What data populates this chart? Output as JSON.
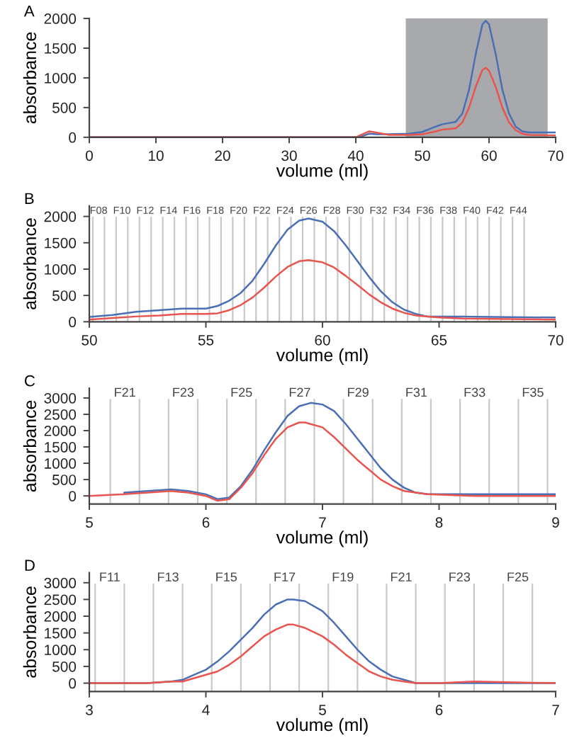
{
  "chart_data": [
    {
      "type": "line",
      "title": "A",
      "xlabel": "volume (ml)",
      "ylabel": "absorbance",
      "xlim": [
        0,
        70
      ],
      "xticks": [
        0,
        10,
        20,
        30,
        40,
        50,
        60,
        70
      ],
      "ylim": [
        0,
        2000
      ],
      "yticks": [
        0,
        500,
        1000,
        1500,
        2000
      ],
      "grid": false,
      "bands": [
        {
          "axis": "x",
          "from": 47.5,
          "to": 68.8,
          "color": "#a7a9ac"
        }
      ],
      "series": [
        {
          "color": "#4a6fb5",
          "x": [
            0,
            38,
            40,
            41,
            42,
            43,
            45,
            48,
            50,
            52,
            53,
            55,
            56,
            57,
            58,
            59,
            59.5,
            60,
            61,
            62,
            63,
            64,
            65,
            66,
            70
          ],
          "values": [
            0,
            0,
            0,
            20,
            60,
            50,
            50,
            60,
            90,
            180,
            220,
            260,
            400,
            800,
            1400,
            1900,
            1960,
            1900,
            1400,
            800,
            400,
            180,
            100,
            80,
            80
          ]
        },
        {
          "color": "#e8544e",
          "x": [
            0,
            38,
            40,
            41,
            42,
            43,
            45,
            48,
            50,
            52,
            53,
            55,
            56,
            57,
            58,
            59,
            59.5,
            60,
            61,
            62,
            63,
            64,
            65,
            66,
            70
          ],
          "values": [
            0,
            0,
            0,
            50,
            100,
            80,
            40,
            40,
            50,
            100,
            130,
            150,
            250,
            500,
            850,
            1130,
            1170,
            1120,
            850,
            500,
            250,
            120,
            60,
            40,
            30
          ]
        }
      ]
    },
    {
      "type": "line",
      "title": "B",
      "xlabel": "volume (ml)",
      "ylabel": "absorbance",
      "xlim": [
        50,
        70
      ],
      "xticks": [
        50,
        55,
        60,
        65,
        70
      ],
      "ylim": [
        0,
        2200
      ],
      "yticks": [
        0,
        500,
        1000,
        1500,
        2000
      ],
      "grid": false,
      "ref_lines": [
        {
          "axis": "x",
          "value": 50.15,
          "label": "F08"
        },
        {
          "axis": "x",
          "value": 50.65
        },
        {
          "axis": "x",
          "value": 51.15,
          "label": "F10"
        },
        {
          "axis": "x",
          "value": 51.65
        },
        {
          "axis": "x",
          "value": 52.15,
          "label": "F12"
        },
        {
          "axis": "x",
          "value": 52.65
        },
        {
          "axis": "x",
          "value": 53.15,
          "label": "F14"
        },
        {
          "axis": "x",
          "value": 53.65
        },
        {
          "axis": "x",
          "value": 54.15,
          "label": "F16"
        },
        {
          "axis": "x",
          "value": 54.65
        },
        {
          "axis": "x",
          "value": 55.15,
          "label": "F18"
        },
        {
          "axis": "x",
          "value": 55.65
        },
        {
          "axis": "x",
          "value": 56.15,
          "label": "F20"
        },
        {
          "axis": "x",
          "value": 56.65
        },
        {
          "axis": "x",
          "value": 57.15,
          "label": "F22"
        },
        {
          "axis": "x",
          "value": 57.65
        },
        {
          "axis": "x",
          "value": 58.15,
          "label": "F24"
        },
        {
          "axis": "x",
          "value": 58.65
        },
        {
          "axis": "x",
          "value": 59.15,
          "label": "F26"
        },
        {
          "axis": "x",
          "value": 59.65
        },
        {
          "axis": "x",
          "value": 60.15,
          "label": "F28"
        },
        {
          "axis": "x",
          "value": 60.65
        },
        {
          "axis": "x",
          "value": 61.15,
          "label": "F30"
        },
        {
          "axis": "x",
          "value": 61.65
        },
        {
          "axis": "x",
          "value": 62.15,
          "label": "F32"
        },
        {
          "axis": "x",
          "value": 62.65
        },
        {
          "axis": "x",
          "value": 63.15,
          "label": "F34"
        },
        {
          "axis": "x",
          "value": 63.65
        },
        {
          "axis": "x",
          "value": 64.15,
          "label": "F36"
        },
        {
          "axis": "x",
          "value": 64.65
        },
        {
          "axis": "x",
          "value": 65.15,
          "label": "F38"
        },
        {
          "axis": "x",
          "value": 65.65
        },
        {
          "axis": "x",
          "value": 66.15,
          "label": "F40"
        },
        {
          "axis": "x",
          "value": 66.65
        },
        {
          "axis": "x",
          "value": 67.15,
          "label": "F42"
        },
        {
          "axis": "x",
          "value": 67.65
        },
        {
          "axis": "x",
          "value": 68.15,
          "label": "F44"
        },
        {
          "axis": "x",
          "value": 68.65
        }
      ],
      "series": [
        {
          "color": "#4a6fb5",
          "x": [
            50,
            51,
            52,
            53,
            54,
            55,
            55.5,
            56,
            56.5,
            57,
            57.5,
            58,
            58.5,
            59,
            59.4,
            60,
            60.5,
            61,
            61.5,
            62,
            62.5,
            63,
            63.5,
            64,
            64.5,
            65,
            66,
            70
          ],
          "values": [
            90,
            130,
            190,
            220,
            250,
            250,
            300,
            400,
            550,
            780,
            1100,
            1450,
            1750,
            1920,
            1960,
            1900,
            1720,
            1450,
            1150,
            850,
            580,
            370,
            230,
            150,
            100,
            100,
            100,
            80
          ]
        },
        {
          "color": "#e8544e",
          "x": [
            50,
            51,
            52,
            53,
            54,
            55,
            55.5,
            56,
            56.5,
            57,
            57.5,
            58,
            58.5,
            59,
            59.4,
            60,
            60.5,
            61,
            61.5,
            62,
            62.5,
            63,
            63.5,
            64,
            65,
            66,
            70
          ],
          "values": [
            40,
            70,
            100,
            120,
            150,
            150,
            160,
            220,
            320,
            460,
            650,
            860,
            1040,
            1150,
            1170,
            1130,
            1030,
            870,
            700,
            520,
            370,
            250,
            170,
            120,
            80,
            60,
            40
          ]
        }
      ]
    },
    {
      "type": "line",
      "title": "C",
      "xlabel": "volume (ml)",
      "ylabel": "absorbance",
      "xlim": [
        5,
        9
      ],
      "xticks": [
        5,
        6,
        7,
        8,
        9
      ],
      "ylim": [
        -250,
        3300
      ],
      "yticks": [
        0,
        500,
        1000,
        1500,
        2000,
        2500,
        3000
      ],
      "grid": false,
      "ref_lines": [
        {
          "axis": "x",
          "value": 5.18,
          "label": "F21"
        },
        {
          "axis": "x",
          "value": 5.43
        },
        {
          "axis": "x",
          "value": 5.68,
          "label": "F23"
        },
        {
          "axis": "x",
          "value": 5.93
        },
        {
          "axis": "x",
          "value": 6.18,
          "label": "F25"
        },
        {
          "axis": "x",
          "value": 6.43
        },
        {
          "axis": "x",
          "value": 6.68,
          "label": "F27"
        },
        {
          "axis": "x",
          "value": 6.93
        },
        {
          "axis": "x",
          "value": 7.18,
          "label": "F29"
        },
        {
          "axis": "x",
          "value": 7.43
        },
        {
          "axis": "x",
          "value": 7.68,
          "label": "F31"
        },
        {
          "axis": "x",
          "value": 7.93
        },
        {
          "axis": "x",
          "value": 8.18,
          "label": "F33"
        },
        {
          "axis": "x",
          "value": 8.43
        },
        {
          "axis": "x",
          "value": 8.68,
          "label": "F35"
        },
        {
          "axis": "x",
          "value": 8.93
        }
      ],
      "series": [
        {
          "color": "#4a6fb5",
          "x": [
            5.3,
            5.5,
            5.7,
            5.85,
            6.0,
            6.1,
            6.2,
            6.3,
            6.4,
            6.5,
            6.6,
            6.7,
            6.8,
            6.9,
            7.0,
            7.1,
            7.2,
            7.3,
            7.4,
            7.5,
            7.6,
            7.7,
            7.8,
            7.9,
            8.0,
            8.3,
            9
          ],
          "values": [
            100,
            150,
            200,
            150,
            50,
            -100,
            -50,
            300,
            800,
            1400,
            1950,
            2450,
            2750,
            2850,
            2800,
            2600,
            2200,
            1750,
            1300,
            850,
            500,
            250,
            100,
            50,
            50,
            50,
            50
          ]
        },
        {
          "color": "#e8544e",
          "x": [
            5,
            5.3,
            5.5,
            5.7,
            5.85,
            6.0,
            6.1,
            6.2,
            6.3,
            6.4,
            6.5,
            6.6,
            6.7,
            6.8,
            6.85,
            7.0,
            7.1,
            7.2,
            7.3,
            7.4,
            7.5,
            7.6,
            7.7,
            7.8,
            7.9,
            8.3,
            9
          ],
          "values": [
            0,
            50,
            100,
            150,
            100,
            0,
            -150,
            -100,
            250,
            700,
            1250,
            1750,
            2100,
            2250,
            2250,
            2100,
            1800,
            1450,
            1100,
            800,
            500,
            300,
            150,
            100,
            50,
            0,
            0
          ]
        }
      ]
    },
    {
      "type": "line",
      "title": "D",
      "xlabel": "volume (ml)",
      "ylabel": "absorbance",
      "xlim": [
        3,
        7
      ],
      "xticks": [
        3,
        4,
        5,
        6,
        7
      ],
      "ylim": [
        -250,
        3300
      ],
      "yticks": [
        0,
        500,
        1000,
        1500,
        2000,
        2500,
        3000
      ],
      "grid": false,
      "ref_lines": [
        {
          "axis": "x",
          "value": 3.05,
          "label": "F11"
        },
        {
          "axis": "x",
          "value": 3.3
        },
        {
          "axis": "x",
          "value": 3.55,
          "label": "F13"
        },
        {
          "axis": "x",
          "value": 3.8
        },
        {
          "axis": "x",
          "value": 4.05,
          "label": "F15"
        },
        {
          "axis": "x",
          "value": 4.3
        },
        {
          "axis": "x",
          "value": 4.55,
          "label": "F17"
        },
        {
          "axis": "x",
          "value": 4.8
        },
        {
          "axis": "x",
          "value": 5.05,
          "label": "F19"
        },
        {
          "axis": "x",
          "value": 5.3
        },
        {
          "axis": "x",
          "value": 5.55,
          "label": "F21"
        },
        {
          "axis": "x",
          "value": 5.8
        },
        {
          "axis": "x",
          "value": 6.05,
          "label": "F23"
        },
        {
          "axis": "x",
          "value": 6.3
        },
        {
          "axis": "x",
          "value": 6.55,
          "label": "F25"
        },
        {
          "axis": "x",
          "value": 6.8
        }
      ],
      "series": [
        {
          "color": "#4a6fb5",
          "x": [
            3,
            3.5,
            3.7,
            3.8,
            3.9,
            4.0,
            4.1,
            4.2,
            4.3,
            4.4,
            4.5,
            4.6,
            4.7,
            4.75,
            4.85,
            5.0,
            5.1,
            5.2,
            5.3,
            5.4,
            5.5,
            5.6,
            5.7,
            5.8,
            6,
            7
          ],
          "values": [
            0,
            0,
            50,
            100,
            250,
            400,
            650,
            950,
            1300,
            1650,
            2050,
            2350,
            2500,
            2500,
            2450,
            2150,
            1800,
            1400,
            1000,
            650,
            400,
            200,
            100,
            0,
            0,
            0
          ]
        },
        {
          "color": "#e8544e",
          "x": [
            3,
            3.5,
            3.7,
            3.8,
            3.9,
            4.0,
            4.1,
            4.2,
            4.3,
            4.4,
            4.5,
            4.6,
            4.7,
            4.75,
            4.85,
            5.0,
            5.1,
            5.2,
            5.3,
            5.4,
            5.5,
            5.6,
            5.7,
            5.8,
            6,
            6.3,
            7
          ],
          "values": [
            0,
            0,
            50,
            50,
            150,
            250,
            350,
            550,
            800,
            1100,
            1400,
            1600,
            1750,
            1750,
            1650,
            1400,
            1150,
            850,
            600,
            350,
            200,
            100,
            50,
            0,
            0,
            50,
            0
          ]
        }
      ]
    }
  ]
}
